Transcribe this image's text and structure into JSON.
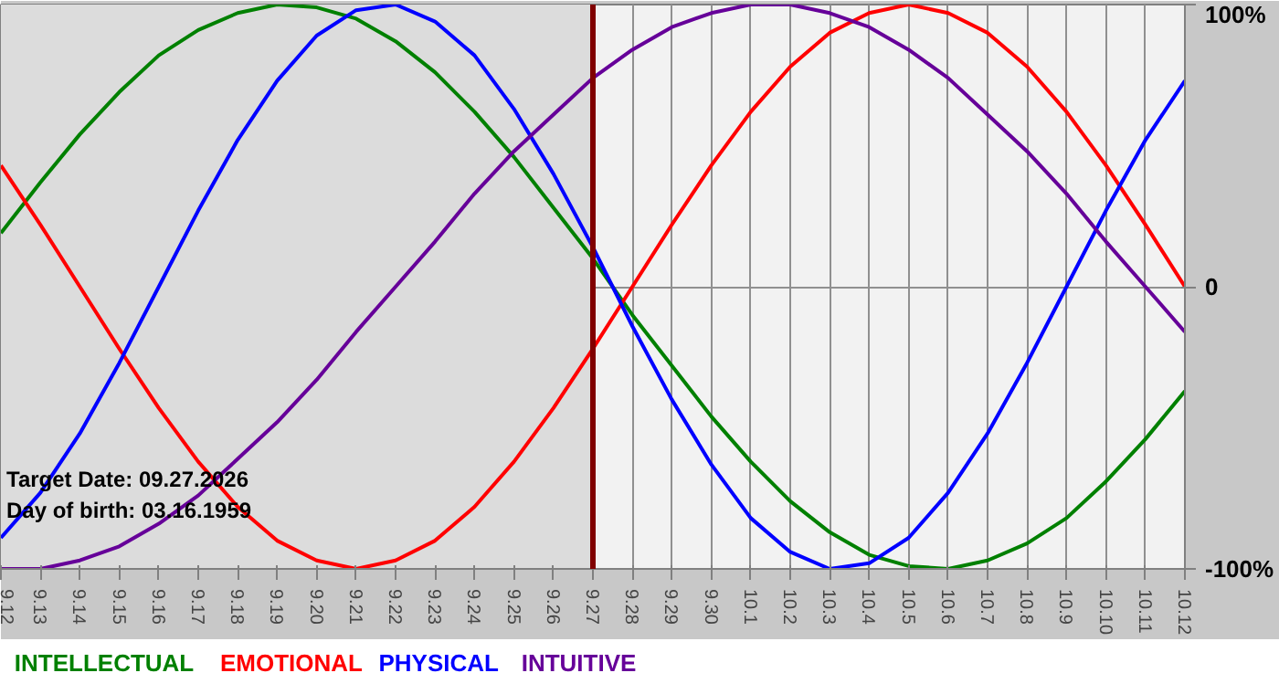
{
  "chart_data": {
    "type": "line",
    "categories": [
      "9.12",
      "9.13",
      "9.14",
      "9.15",
      "9.16",
      "9.17",
      "9.18",
      "9.19",
      "9.20",
      "9.21",
      "9.22",
      "9.23",
      "9.24",
      "9.25",
      "9.26",
      "9.27",
      "9.28",
      "9.29",
      "9.30",
      "10.1",
      "10.2",
      "10.3",
      "10.4",
      "10.5",
      "10.6",
      "10.7",
      "10.8",
      "10.9",
      "10.10",
      "10.11",
      "10.12"
    ],
    "series": [
      {
        "name": "INTELLECTUAL",
        "color": "#008000",
        "values": [
          19,
          37,
          54,
          69,
          82,
          91,
          97,
          100,
          99,
          95,
          87,
          76,
          62,
          46,
          28,
          10,
          -10,
          -28,
          -46,
          -62,
          -76,
          -87,
          -95,
          -99,
          -100,
          -97,
          -91,
          -82,
          -69,
          -54,
          -37
        ]
      },
      {
        "name": "EMOTIONAL",
        "color": "#ff0000",
        "values": [
          43,
          22,
          0,
          -22,
          -43,
          -62,
          -78,
          -90,
          -97,
          -100,
          -97,
          -90,
          -78,
          -62,
          -43,
          -22,
          0,
          22,
          43,
          62,
          78,
          90,
          97,
          100,
          97,
          90,
          78,
          62,
          43,
          22,
          0
        ]
      },
      {
        "name": "PHYSICAL",
        "color": "#0000ff",
        "values": [
          -89,
          -73,
          -52,
          -27,
          0,
          27,
          52,
          73,
          89,
          98,
          100,
          94,
          82,
          63,
          40,
          14,
          -14,
          -40,
          -63,
          -82,
          -94,
          -100,
          -98,
          -89,
          -73,
          -52,
          -27,
          0,
          27,
          52,
          73
        ]
      },
      {
        "name": "INTUITIVE",
        "color": "#660099",
        "values": [
          -100,
          -100,
          -97,
          -92,
          -84,
          -74,
          -61,
          -48,
          -33,
          -16,
          0,
          16,
          33,
          48,
          61,
          74,
          84,
          92,
          97,
          100,
          100,
          97,
          92,
          84,
          74,
          61,
          48,
          33,
          16,
          0,
          -16
        ]
      }
    ],
    "ylim": [
      -100,
      100
    ],
    "yticks": [
      {
        "value": 100,
        "label": "100%"
      },
      0,
      {
        "value": -100,
        "label": "-100%"
      }
    ],
    "grid": true,
    "legend": "bottom",
    "line_style": "solid",
    "ref_lines": [
      {
        "axis": "x",
        "value": "9.27",
        "color": "#800000"
      }
    ],
    "bands": [
      {
        "axis": "x",
        "from": "9.12",
        "to": "9.27",
        "color": "#dcdcdc"
      }
    ],
    "annotations": [
      "Target Date: 09.27.2026",
      "Day of birth: 03.16.1959"
    ]
  }
}
